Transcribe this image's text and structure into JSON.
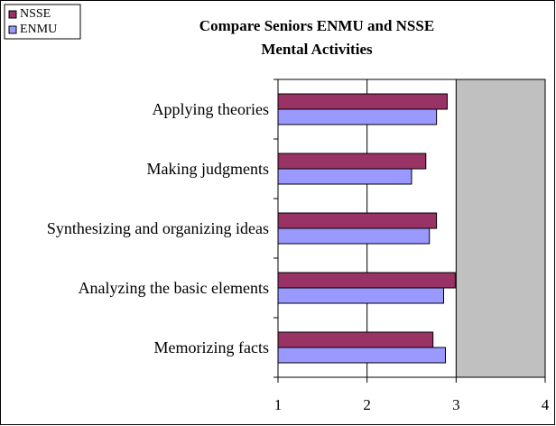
{
  "chart_data": {
    "type": "bar",
    "orientation": "horizontal",
    "title": [
      "Compare Seniors ENMU and NSSE",
      "Mental Activities"
    ],
    "categories": [
      "Applying theories",
      "Making judgments",
      "Synthesizing and organizing ideas",
      "Analyzing the basic elements",
      "Memorizing facts"
    ],
    "series": [
      {
        "name": "NSSE",
        "color": "#993366",
        "values": [
          2.9,
          2.66,
          2.78,
          2.99,
          2.74
        ]
      },
      {
        "name": "ENMU",
        "color": "#9999ff",
        "values": [
          2.78,
          2.5,
          2.7,
          2.86,
          2.88
        ]
      }
    ],
    "xlim": [
      1,
      4
    ],
    "xticks": [
      1,
      2,
      3,
      4
    ],
    "grid": true,
    "legend": "top-left"
  }
}
